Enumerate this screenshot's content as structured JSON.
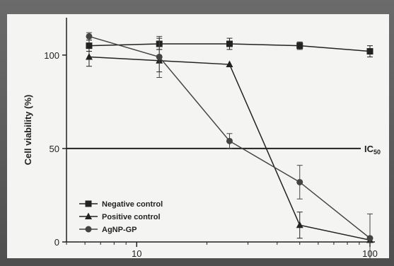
{
  "chart_data": {
    "type": "line",
    "xscale": "log",
    "xlim": [
      5,
      105
    ],
    "ylim": [
      0,
      120
    ],
    "xticks": [
      10,
      100
    ],
    "yticks": [
      0,
      50,
      100
    ],
    "xlabel": "",
    "ylabel": "Cell viability (%)",
    "grid": false,
    "legend_position": "bottom-left",
    "reference_line": {
      "y": 50,
      "label": "IC",
      "label_sub": "50"
    },
    "series": [
      {
        "name": "Negative control",
        "marker": "square",
        "color": "#222222",
        "x": [
          6.25,
          12.5,
          25,
          50,
          100
        ],
        "y": [
          105,
          106,
          106,
          105,
          102
        ],
        "err": [
          3,
          3,
          3,
          2,
          3
        ]
      },
      {
        "name": "Positive control",
        "marker": "triangle",
        "color": "#222222",
        "x": [
          6.25,
          12.5,
          25,
          50,
          100
        ],
        "y": [
          99,
          97,
          95,
          9,
          1
        ],
        "err": [
          5,
          6,
          0,
          7,
          1
        ]
      },
      {
        "name": "AgNP-GP",
        "marker": "circle",
        "color": "#444444",
        "x": [
          6.25,
          12.5,
          25,
          50,
          100
        ],
        "y": [
          110,
          99,
          54,
          32,
          2
        ],
        "err": [
          2,
          11,
          4,
          9,
          13
        ]
      }
    ]
  }
}
